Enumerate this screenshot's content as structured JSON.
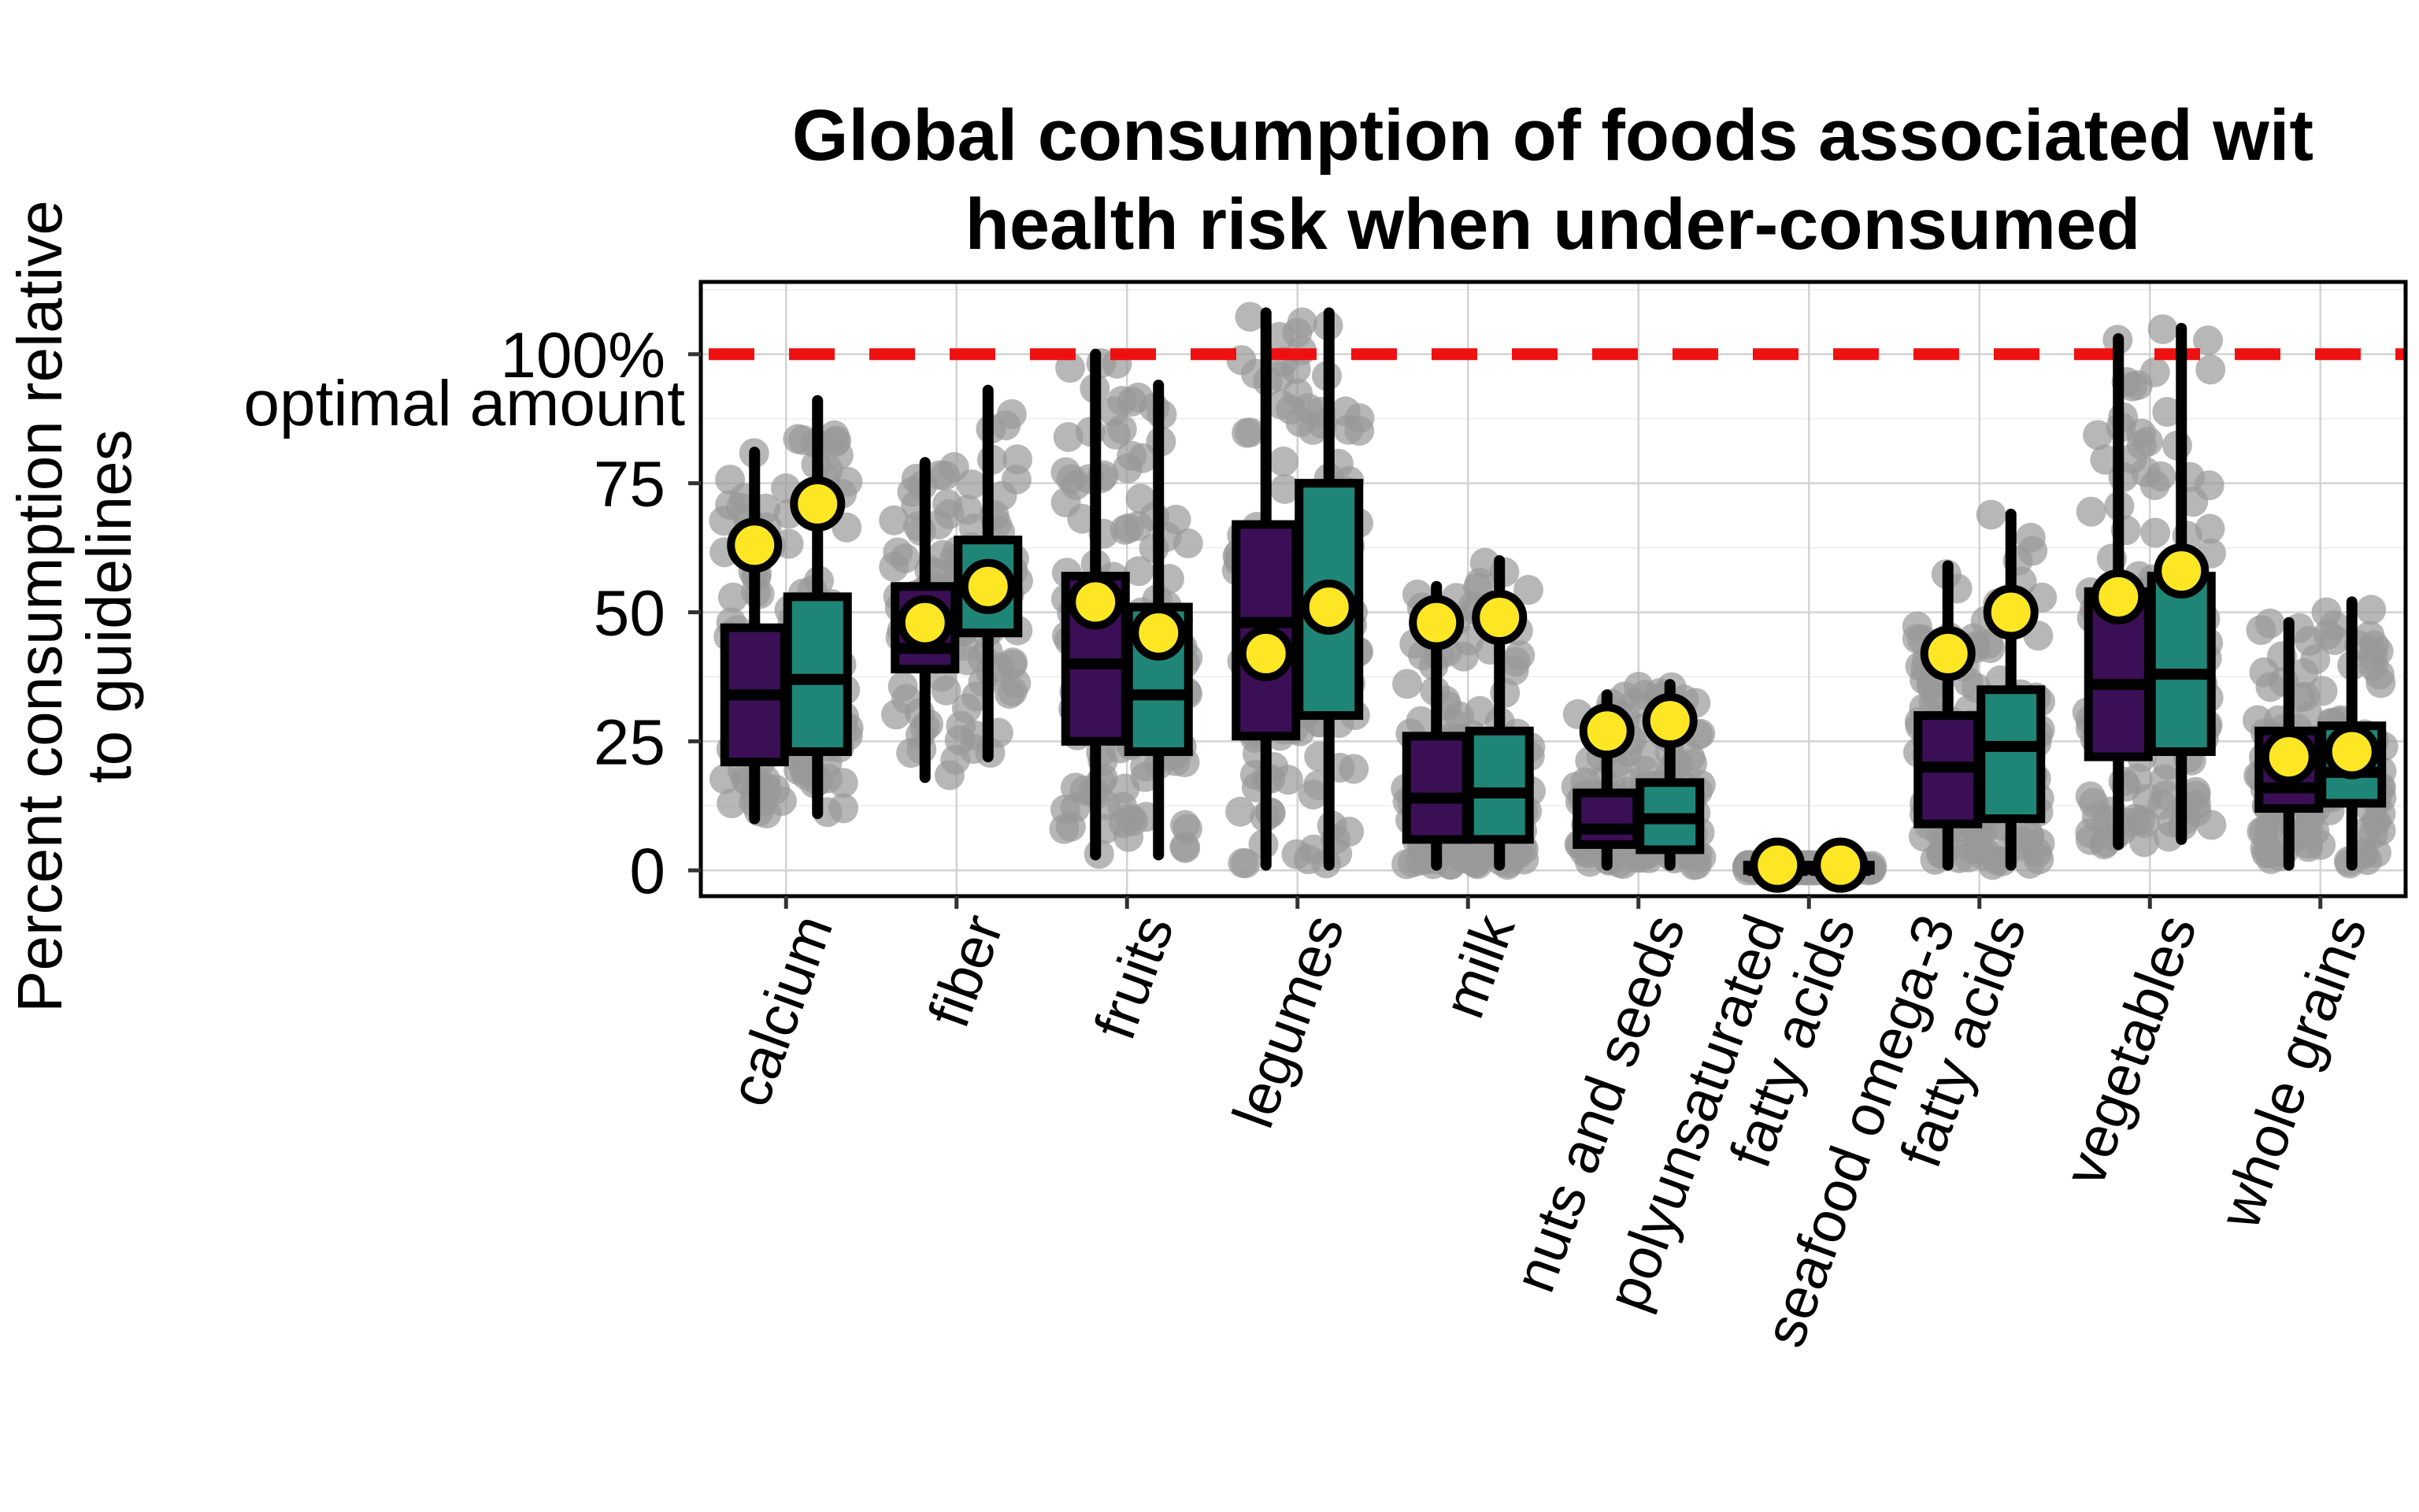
{
  "chart_data": {
    "type": "boxplot",
    "title_lines": [
      "Global consumption of foods associated wit",
      "health risk when under-consumed"
    ],
    "ylabel_lines": [
      "Percent consumption relative",
      "to guidelines"
    ],
    "y_ticks": [
      {
        "value": 0,
        "label": "0"
      },
      {
        "value": 25,
        "label": "25"
      },
      {
        "value": 50,
        "label": "50"
      },
      {
        "value": 75,
        "label": "75"
      },
      {
        "value": 100,
        "label": "100%"
      }
    ],
    "reference_line": {
      "value": 100,
      "label": "optimal amount",
      "color": "#ee1111",
      "style": "dashed"
    },
    "ylim": [
      -5,
      114
    ],
    "grid": true,
    "colors": {
      "group1": "#3b0f56",
      "group2": "#1f8677",
      "mean_marker": "#fde725",
      "points": "#999999"
    },
    "categories": [
      {
        "label_lines": [
          "calcium"
        ],
        "boxes": [
          {
            "min": 10,
            "q1": 21,
            "median": 34,
            "q3": 47,
            "max": 81,
            "mean": 63
          },
          {
            "min": 11,
            "q1": 23,
            "median": 37,
            "q3": 53,
            "max": 91,
            "mean": 71
          }
        ]
      },
      {
        "label_lines": [
          "fiber"
        ],
        "boxes": [
          {
            "min": 18,
            "q1": 39,
            "median": 43,
            "q3": 55,
            "max": 79,
            "mean": 48
          },
          {
            "min": 22,
            "q1": 46,
            "median": 54,
            "q3": 64,
            "max": 93,
            "mean": 55
          }
        ]
      },
      {
        "label_lines": [
          "fruits"
        ],
        "boxes": [
          {
            "min": 3,
            "q1": 25,
            "median": 40,
            "q3": 57,
            "max": 100,
            "mean": 52
          },
          {
            "min": 3,
            "q1": 23,
            "median": 34,
            "q3": 51,
            "max": 94,
            "mean": 46
          }
        ]
      },
      {
        "label_lines": [
          "legumes"
        ],
        "boxes": [
          {
            "min": 1,
            "q1": 26,
            "median": 48,
            "q3": 67,
            "max": 108,
            "mean": 42
          },
          {
            "min": 1,
            "q1": 30,
            "median": 51,
            "q3": 75,
            "max": 108,
            "mean": 51
          }
        ]
      },
      {
        "label_lines": [
          "milk"
        ],
        "boxes": [
          {
            "min": 1,
            "q1": 6,
            "median": 14,
            "q3": 26,
            "max": 55,
            "mean": 48
          },
          {
            "min": 1,
            "q1": 6,
            "median": 15,
            "q3": 27,
            "max": 60,
            "mean": 49
          }
        ]
      },
      {
        "label_lines": [
          "nuts and seeds"
        ],
        "boxes": [
          {
            "min": 1,
            "q1": 5,
            "median": 8,
            "q3": 15,
            "max": 34,
            "mean": 27
          },
          {
            "min": 1,
            "q1": 4,
            "median": 10,
            "q3": 17,
            "max": 36,
            "mean": 29
          }
        ]
      },
      {
        "label_lines": [
          "polyunsaturated",
          "fatty acids"
        ],
        "boxes": [
          {
            "min": 0,
            "q1": 0,
            "median": 0,
            "q3": 1,
            "max": 1,
            "mean": 1
          },
          {
            "min": 0,
            "q1": 0,
            "median": 0,
            "q3": 1,
            "max": 1,
            "mean": 1
          }
        ]
      },
      {
        "label_lines": [
          "seafood omega-3",
          "fatty acids"
        ],
        "boxes": [
          {
            "min": 1,
            "q1": 9,
            "median": 20,
            "q3": 30,
            "max": 59,
            "mean": 42
          },
          {
            "min": 1,
            "q1": 10,
            "median": 24,
            "q3": 35,
            "max": 69,
            "mean": 50
          }
        ]
      },
      {
        "label_lines": [
          "vegetables"
        ],
        "boxes": [
          {
            "min": 5,
            "q1": 22,
            "median": 36,
            "q3": 54,
            "max": 103,
            "mean": 53
          },
          {
            "min": 6,
            "q1": 23,
            "median": 38,
            "q3": 57,
            "max": 105,
            "mean": 58
          }
        ]
      },
      {
        "label_lines": [
          "whole grains"
        ],
        "boxes": [
          {
            "min": 1,
            "q1": 12,
            "median": 16,
            "q3": 27,
            "max": 48,
            "mean": 22
          },
          {
            "min": 1,
            "q1": 13,
            "median": 19,
            "q3": 28,
            "max": 52,
            "mean": 23
          }
        ]
      }
    ]
  }
}
